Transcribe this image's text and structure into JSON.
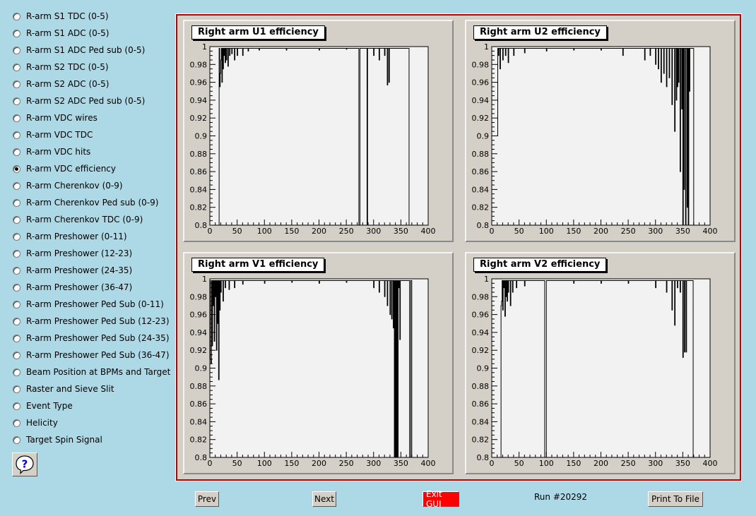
{
  "menu": {
    "items": [
      "R-arm S1 TDC (0-5)",
      "R-arm S1 ADC (0-5)",
      "R-arm S1 ADC Ped sub (0-5)",
      "R-arm S2 TDC (0-5)",
      "R-arm S2 ADC (0-5)",
      "R-arm S2 ADC Ped sub (0-5)",
      "R-arm VDC wires",
      "R-arm VDC TDC",
      "R-arm VDC hits",
      "R-arm VDC efficiency",
      "R-arm Cherenkov (0-9)",
      "R-arm Cherenkov Ped sub (0-9)",
      "R-arm Cherenkov TDC (0-9)",
      "R-arm Preshower (0-11)",
      "R-arm Preshower (12-23)",
      "R-arm Preshower (24-35)",
      "R-arm Preshower (36-47)",
      "R-arm Preshower Ped Sub (0-11)",
      "R-arm Preshower Ped Sub (12-23)",
      "R-arm Preshower Ped Sub (24-35)",
      "R-arm Preshower Ped Sub (36-47)",
      "Beam Position at BPMs and Target",
      "Raster and Sieve Slit",
      "Event Type",
      "Helicity",
      "Target Spin Signal"
    ],
    "selected_index": 9,
    "help_icon": "question-bubble-icon"
  },
  "buttons": {
    "prev": "Prev",
    "next": "Next",
    "exit": "Exit GUI",
    "print": "Print To File"
  },
  "run_label": "Run #20292",
  "colors": {
    "background": "#add8e6",
    "canvas_border": "#c00000",
    "exit_button": "#ff0000"
  },
  "chart_data": [
    {
      "type": "histogram",
      "title": "Right arm U1 efficiency",
      "xlim": [
        0,
        400
      ],
      "ylim": [
        0.8,
        1.0
      ],
      "xticks": [
        "0",
        "50",
        "100",
        "150",
        "200",
        "250",
        "300",
        "350",
        "400"
      ],
      "yticks": [
        "0.8",
        "0.82",
        "0.84",
        "0.86",
        "0.88",
        "0.9",
        "0.92",
        "0.94",
        "0.96",
        "0.98",
        "1"
      ],
      "x_range": [
        17,
        367
      ],
      "baseline": 0.998,
      "dips": [
        [
          18,
          0.955
        ],
        [
          19,
          0.97
        ],
        [
          20,
          0.985
        ],
        [
          22,
          0.96
        ],
        [
          24,
          0.975
        ],
        [
          26,
          0.99
        ],
        [
          28,
          0.982
        ],
        [
          30,
          0.985
        ],
        [
          33,
          0.978
        ],
        [
          36,
          0.99
        ],
        [
          40,
          0.992
        ],
        [
          45,
          0.985
        ],
        [
          50,
          0.99
        ],
        [
          60,
          0.99
        ],
        [
          70,
          0.995
        ],
        [
          90,
          0.996
        ],
        [
          140,
          0.996
        ],
        [
          200,
          0.996
        ],
        [
          250,
          0.997
        ],
        [
          273,
          0.8
        ],
        [
          274,
          0.8
        ],
        [
          288,
          0.8
        ],
        [
          300,
          0.99
        ],
        [
          310,
          0.985
        ],
        [
          320,
          0.99
        ],
        [
          325,
          0.957
        ],
        [
          328,
          0.96
        ],
        [
          365,
          0.8
        ],
        [
          366,
          0.8
        ]
      ]
    },
    {
      "type": "histogram",
      "title": "Right arm U2 efficiency",
      "xlim": [
        0,
        400
      ],
      "ylim": [
        0.8,
        1.0
      ],
      "xticks": [
        "0",
        "50",
        "100",
        "150",
        "200",
        "250",
        "300",
        "350",
        "400"
      ],
      "yticks": [
        "0.8",
        "0.82",
        "0.84",
        "0.86",
        "0.88",
        "0.9",
        "0.92",
        "0.94",
        "0.96",
        "0.98",
        "1"
      ],
      "x_range": [
        0,
        370
      ],
      "baseline": 0.998,
      "dips": [
        [
          0,
          0.9
        ],
        [
          1,
          0.9
        ],
        [
          2,
          0.9
        ],
        [
          3,
          0.9
        ],
        [
          4,
          0.9
        ],
        [
          5,
          0.9
        ],
        [
          6,
          0.9
        ],
        [
          7,
          0.9
        ],
        [
          8,
          0.9
        ],
        [
          9,
          0.9
        ],
        [
          10,
          0.9
        ],
        [
          12,
          0.99
        ],
        [
          15,
          0.975
        ],
        [
          20,
          0.985
        ],
        [
          25,
          0.99
        ],
        [
          30,
          0.982
        ],
        [
          40,
          0.99
        ],
        [
          60,
          0.993
        ],
        [
          100,
          0.995
        ],
        [
          150,
          0.996
        ],
        [
          200,
          0.996
        ],
        [
          240,
          0.99
        ],
        [
          280,
          0.985
        ],
        [
          290,
          0.99
        ],
        [
          300,
          0.98
        ],
        [
          305,
          0.975
        ],
        [
          310,
          0.96
        ],
        [
          315,
          0.97
        ],
        [
          320,
          0.955
        ],
        [
          325,
          0.965
        ],
        [
          330,
          0.935
        ],
        [
          335,
          0.905
        ],
        [
          338,
          0.94
        ],
        [
          340,
          0.955
        ],
        [
          342,
          0.96
        ],
        [
          345,
          0.86
        ],
        [
          348,
          0.93
        ],
        [
          350,
          0.8
        ],
        [
          352,
          0.84
        ],
        [
          355,
          0.8
        ],
        [
          358,
          0.82
        ],
        [
          360,
          0.8
        ],
        [
          362,
          0.95
        ]
      ]
    },
    {
      "type": "histogram",
      "title": "Right arm V1 efficiency",
      "xlim": [
        0,
        400
      ],
      "ylim": [
        0.8,
        1.0
      ],
      "xticks": [
        "0",
        "50",
        "100",
        "150",
        "200",
        "250",
        "300",
        "350",
        "400"
      ],
      "yticks": [
        "0.8",
        "0.82",
        "0.84",
        "0.86",
        "0.88",
        "0.9",
        "0.92",
        "0.94",
        "0.96",
        "0.98",
        "1"
      ],
      "x_range": [
        0,
        370
      ],
      "baseline": 0.998,
      "dips": [
        [
          1,
          0.91
        ],
        [
          2,
          0.905
        ],
        [
          4,
          0.925
        ],
        [
          6,
          0.97
        ],
        [
          8,
          0.93
        ],
        [
          10,
          0.98
        ],
        [
          12,
          0.92
        ],
        [
          14,
          0.95
        ],
        [
          16,
          0.887
        ],
        [
          18,
          0.965
        ],
        [
          20,
          0.985
        ],
        [
          24,
          0.975
        ],
        [
          28,
          0.99
        ],
        [
          35,
          0.988
        ],
        [
          45,
          0.99
        ],
        [
          60,
          0.994
        ],
        [
          100,
          0.995
        ],
        [
          150,
          0.996
        ],
        [
          200,
          0.995
        ],
        [
          250,
          0.996
        ],
        [
          300,
          0.99
        ],
        [
          310,
          0.985
        ],
        [
          320,
          0.98
        ],
        [
          325,
          0.97
        ],
        [
          330,
          0.96
        ],
        [
          333,
          0.955
        ],
        [
          336,
          0.945
        ],
        [
          338,
          0.8
        ],
        [
          340,
          0.8
        ],
        [
          342,
          0.8
        ],
        [
          344,
          0.8
        ],
        [
          346,
          0.99
        ],
        [
          348,
          0.932
        ],
        [
          350,
          0.998
        ],
        [
          366,
          0.8
        ],
        [
          367,
          0.8
        ]
      ]
    },
    {
      "type": "histogram",
      "title": "Right arm V2 efficiency",
      "xlim": [
        0,
        400
      ],
      "ylim": [
        0.8,
        1.0
      ],
      "xticks": [
        "0",
        "50",
        "100",
        "150",
        "200",
        "250",
        "300",
        "350",
        "400"
      ],
      "yticks": [
        "0.8",
        "0.82",
        "0.84",
        "0.86",
        "0.88",
        "0.9",
        "0.92",
        "0.94",
        "0.96",
        "0.98",
        "1"
      ],
      "x_range": [
        17,
        370
      ],
      "baseline": 0.998,
      "dips": [
        [
          17,
          0.97
        ],
        [
          18,
          0.975
        ],
        [
          20,
          0.965
        ],
        [
          22,
          0.99
        ],
        [
          24,
          0.958
        ],
        [
          26,
          0.98
        ],
        [
          28,
          0.975
        ],
        [
          30,
          0.985
        ],
        [
          34,
          0.97
        ],
        [
          38,
          0.985
        ],
        [
          45,
          0.99
        ],
        [
          60,
          0.992
        ],
        [
          97,
          0.8
        ],
        [
          98,
          0.8
        ],
        [
          99,
          0.8
        ],
        [
          150,
          0.995
        ],
        [
          200,
          0.995
        ],
        [
          250,
          0.995
        ],
        [
          300,
          0.99
        ],
        [
          320,
          0.985
        ],
        [
          330,
          0.965
        ],
        [
          335,
          0.948
        ],
        [
          340,
          0.99
        ],
        [
          345,
          0.985
        ],
        [
          350,
          0.912
        ],
        [
          353,
          0.918
        ],
        [
          356,
          0.918
        ],
        [
          369,
          0.8
        ]
      ]
    }
  ]
}
